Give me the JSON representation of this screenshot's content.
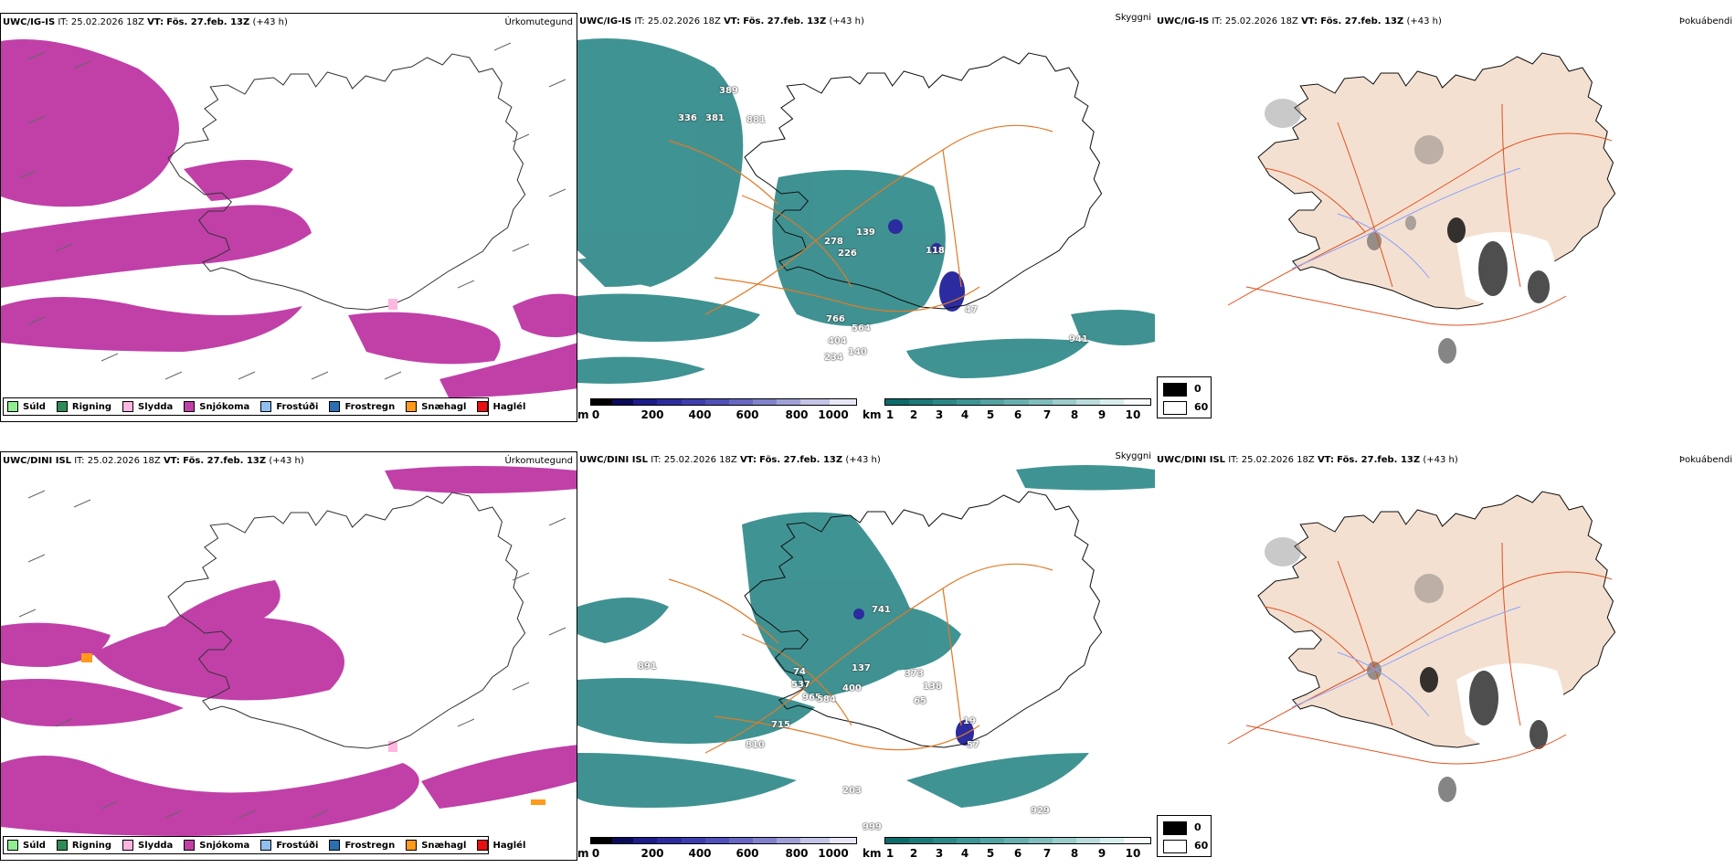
{
  "rows": [
    {
      "model": "UWC/IG-IS",
      "it_label": "IT:",
      "it_value": "25.02.2026 18Z",
      "vt_label": "VT:",
      "vt_value": "Fös. 27.feb. 13Z",
      "lead": "(+43 h)",
      "precip_title": "Úrkomutegund",
      "sky_title": "Skyggni",
      "fog_title": "Þokuábendi",
      "height_labels": [
        "389",
        "336",
        "381",
        "881",
        "278",
        "139",
        "226",
        "118",
        "47",
        "766",
        "564",
        "404",
        "234",
        "140",
        "941"
      ]
    },
    {
      "model": "UWC/DINI ISL",
      "it_label": "IT:",
      "it_value": "25.02.2026 18Z",
      "vt_label": "VT:",
      "vt_value": "Fös. 27.feb. 13Z",
      "lead": "(+43 h)",
      "precip_title": "Úrkomutegund",
      "sky_title": "Skyggni",
      "fog_title": "Þokuábendi",
      "height_labels": [
        "741",
        "891",
        "74",
        "137",
        "373",
        "537",
        "400",
        "138",
        "965",
        "584",
        "65",
        "19",
        "715",
        "57",
        "810",
        "203",
        "999",
        "929"
      ]
    }
  ],
  "precip_legend": [
    {
      "label": "Súld",
      "color": "#90ee90"
    },
    {
      "label": "Rigning",
      "color": "#2e8b57"
    },
    {
      "label": "Slydda",
      "color": "#ffb6e1"
    },
    {
      "label": "Snjókoma",
      "color": "#c040a8"
    },
    {
      "label": "Frostúði",
      "color": "#90c0f0"
    },
    {
      "label": "Frostregn",
      "color": "#2a6fb0"
    },
    {
      "label": "Snæhagl",
      "color": "#ff9a1a"
    },
    {
      "label": "Haglél",
      "color": "#e81010"
    }
  ],
  "ceiling_bar": {
    "unit": "m",
    "ticks": [
      "0",
      "200",
      "400",
      "600",
      "800",
      "1000"
    ],
    "colors": [
      "#000000",
      "#0a0a5a",
      "#1c1c8a",
      "#2c2ca0",
      "#3d3db0",
      "#5050bb",
      "#6868c4",
      "#8282cc",
      "#a0a0d8",
      "#c4c4e8",
      "#e6e6f6"
    ]
  },
  "visibility_bar": {
    "unit": "km",
    "ticks": [
      "1",
      "2",
      "3",
      "4",
      "5",
      "6",
      "7",
      "8",
      "9",
      "10"
    ],
    "colors": [
      "#0b6b6b",
      "#1a7a7a",
      "#2a8888",
      "#3d9696",
      "#52a3a3",
      "#68b0b0",
      "#80bebe",
      "#9ccccc",
      "#badcdc",
      "#d8eeee",
      "#f6fcfc"
    ]
  },
  "cloud_legend": {
    "values": [
      "0",
      "60"
    ],
    "colors": [
      "#000000",
      "#ffffff"
    ]
  },
  "colors": {
    "snow": "#c040a8",
    "sleet": "#ffb6e1",
    "hail": "#ff9a1a",
    "fog_teal": "#1f8080",
    "ceiling_blue": "#2c2ca0",
    "roads": "#e07a28",
    "land": "#f4e0d0",
    "rivers": "#8aa0ff",
    "roads_red": "#e05020"
  }
}
